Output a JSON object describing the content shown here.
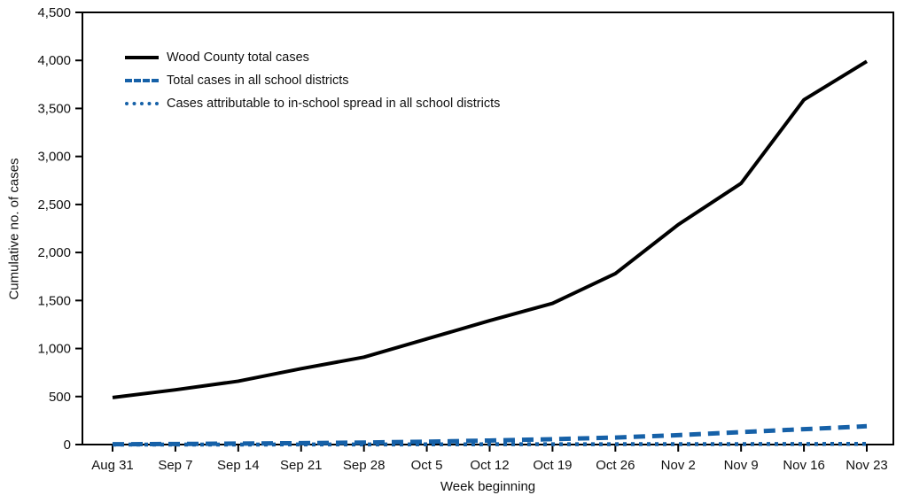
{
  "chart_data": {
    "type": "line",
    "title": "",
    "xlabel": "Week beginning",
    "ylabel": "Cumulative no. of cases",
    "categories": [
      "Aug 31",
      "Sep 7",
      "Sep 14",
      "Sep 21",
      "Sep 28",
      "Oct 5",
      "Oct 12",
      "Oct 19",
      "Oct 26",
      "Nov 2",
      "Nov 9",
      "Nov 16",
      "Nov 23"
    ],
    "ylim": [
      0,
      4500
    ],
    "ytick_step": 500,
    "grid": false,
    "legend_position": "top-left-inside",
    "axis_color": "#000000",
    "series": [
      {
        "name": "Wood County total cases",
        "color": "#000000",
        "style": "solid",
        "values": [
          490,
          570,
          660,
          790,
          910,
          1100,
          1290,
          1470,
          1780,
          2290,
          2720,
          3590,
          3990
        ]
      },
      {
        "name": "Total cases in all school districts",
        "color": "#1661A8",
        "style": "dashed",
        "values": [
          3,
          6,
          10,
          15,
          21,
          30,
          42,
          56,
          73,
          98,
          130,
          160,
          191
        ]
      },
      {
        "name": "Cases attributable to in-school spread in all school districts",
        "color": "#1661A8",
        "style": "dotted",
        "values": [
          0,
          0,
          0,
          1,
          1,
          2,
          3,
          3,
          4,
          5,
          5,
          6,
          7
        ]
      }
    ]
  }
}
